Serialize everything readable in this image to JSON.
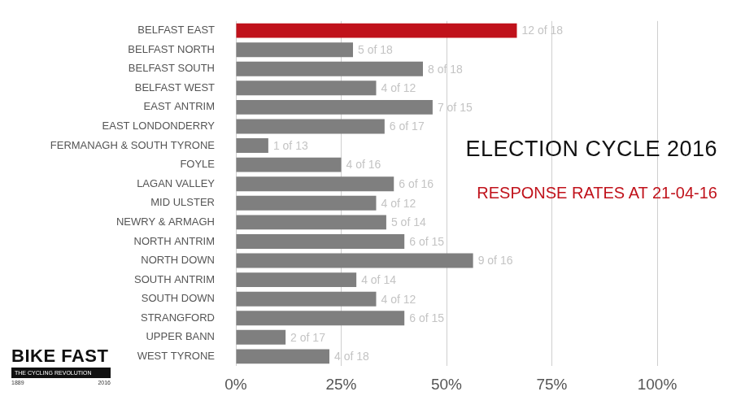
{
  "chart_data": {
    "type": "bar",
    "orientation": "horizontal",
    "title": "ELECTION CYCLE 2016",
    "subtitle": "RESPONSE RATES AT 21-04-16",
    "annotations": [
      "BIKE FAST",
      "THE CYCLING REVOLUTION",
      "1889",
      "2016"
    ],
    "categories": [
      "BELFAST EAST",
      "BELFAST NORTH",
      "BELFAST SOUTH",
      "BELFAST WEST",
      "EAST ANTRIM",
      "EAST LONDONDERRY",
      "FERMANAGH & SOUTH TYRONE",
      "FOYLE",
      "LAGAN VALLEY",
      "MID ULSTER",
      "NEWRY & ARMAGH",
      "NORTH ANTRIM",
      "NORTH DOWN",
      "SOUTH ANTRIM",
      "SOUTH DOWN",
      "STRANGFORD",
      "UPPER BANN",
      "WEST TYRONE"
    ],
    "values": [
      66.7,
      27.8,
      44.4,
      33.3,
      46.7,
      35.3,
      7.7,
      25,
      37.5,
      33.3,
      35.7,
      40,
      56.3,
      28.6,
      33.3,
      40,
      11.8,
      22.2
    ],
    "value_labels": [
      "12 of 18",
      "5 of 18",
      "8 of 18",
      "4 of 12",
      "7 of 15",
      "6 of 17",
      "1 of 13",
      "4 of 16",
      "6 of 16",
      "4 of 12",
      "5 of 14",
      "6 of 15",
      "9 of 16",
      "4 of 14",
      "4 of 12",
      "6 of 15",
      "2 of 17",
      "4 of 18"
    ],
    "colors": [
      "#c0121b",
      "#7f7f7f",
      "#7f7f7f",
      "#7f7f7f",
      "#7f7f7f",
      "#7f7f7f",
      "#7f7f7f",
      "#7f7f7f",
      "#7f7f7f",
      "#7f7f7f",
      "#7f7f7f",
      "#7f7f7f",
      "#7f7f7f",
      "#7f7f7f",
      "#7f7f7f",
      "#7f7f7f",
      "#7f7f7f",
      "#7f7f7f"
    ],
    "data_labels": true,
    "xlim": [
      0,
      100
    ],
    "xticks": [
      {
        "value": 0,
        "label": "0%"
      },
      {
        "value": 25,
        "label": "25%"
      },
      {
        "value": 50,
        "label": "50%"
      },
      {
        "value": 75,
        "label": "75%"
      },
      {
        "value": 100,
        "label": "100%"
      }
    ],
    "grid": true
  }
}
